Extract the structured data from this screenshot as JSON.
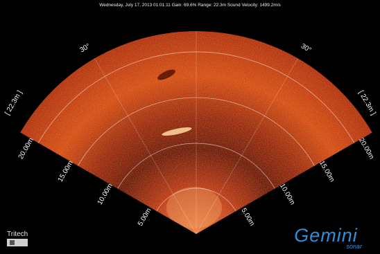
{
  "header": {
    "status": "Wednesday, July 17, 2013 01:01:11   Gain: 69.6%   Range: 22.3m   Sound Velocity: 1499.2m/s"
  },
  "angles": [
    "30°",
    "30°"
  ],
  "range_labels": [
    "[ 22.3m ]",
    "[ 22.3m ]"
  ],
  "rings_left": [
    "20.00m",
    "15.00m",
    "10.00m",
    "5.00m"
  ],
  "rings_right": [
    "20.00m",
    "15.00m",
    "10.00m",
    "5.00m"
  ],
  "logos": {
    "tritech": "Tritech",
    "gemini": "Gemini",
    "sonar": "sonar"
  }
}
